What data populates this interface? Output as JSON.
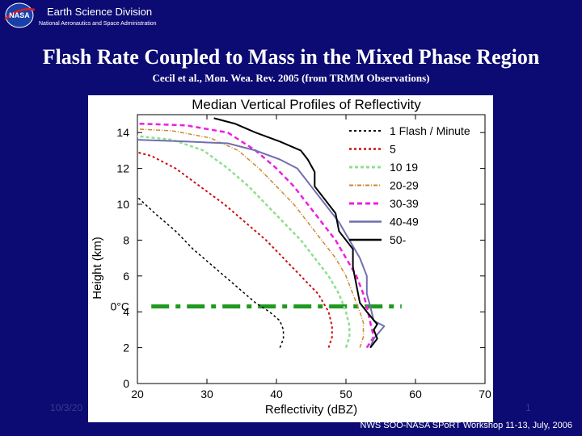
{
  "header": {
    "logo_text": "NASA",
    "division": "Earth Science Division",
    "agency": "National Aeronautics and Space Administration"
  },
  "slide": {
    "title": "Flash Rate Coupled to Mass in the Mixed Phase Region",
    "subtitle": "Cecil et al., Mon. Wea. Rev. 2005 (from TRMM Observations)"
  },
  "footer": {
    "date": "10/3/20",
    "page": "1",
    "workshop": "NWS SOO-NASA SPoRT Workshop 11-13, July, 2006"
  },
  "chart_data": {
    "type": "line",
    "title": "Median Vertical Profiles of Reflectivity",
    "xlabel": "Reflectivity (dBZ)",
    "ylabel": "Height (km)",
    "xlim": [
      20,
      70
    ],
    "ylim": [
      0,
      15
    ],
    "xticks": [
      20,
      30,
      40,
      50,
      60,
      70
    ],
    "yticks": [
      0,
      2,
      4,
      6,
      8,
      10,
      12,
      14
    ],
    "grid": false,
    "legend_position": "top-right",
    "annotation": {
      "text": "0°C",
      "height": 4.3
    },
    "freezing_level": {
      "height": 4.3,
      "x_range": [
        22,
        58
      ],
      "color": "#1f9a1f"
    },
    "series": [
      {
        "name": "1 Flash / Minute",
        "color": "#000000",
        "dash": "3,3",
        "width": 1.5,
        "points": [
          [
            40.5,
            2
          ],
          [
            41,
            2.5
          ],
          [
            41,
            3
          ],
          [
            40.5,
            3.5
          ],
          [
            39,
            4
          ],
          [
            37,
            4.5
          ],
          [
            34,
            5.5
          ],
          [
            31,
            6.5
          ],
          [
            28,
            7.5
          ],
          [
            25.5,
            8.5
          ],
          [
            22.5,
            9.5
          ],
          [
            20,
            10.4
          ]
        ]
      },
      {
        "name": "5",
        "color": "#cc1111",
        "dash": "3,3",
        "width": 2,
        "points": [
          [
            47.5,
            2
          ],
          [
            48,
            2.6
          ],
          [
            48,
            3.2
          ],
          [
            47.5,
            4
          ],
          [
            46,
            5
          ],
          [
            43.5,
            6
          ],
          [
            41,
            7
          ],
          [
            38.5,
            8
          ],
          [
            35.5,
            9
          ],
          [
            32.5,
            10
          ],
          [
            29,
            11
          ],
          [
            25.5,
            12
          ],
          [
            22,
            12.7
          ],
          [
            20,
            12.9
          ]
        ]
      },
      {
        "name": "10 19",
        "color": "#8ee08e",
        "dash": "4,3",
        "width": 2.5,
        "points": [
          [
            50,
            2
          ],
          [
            50.5,
            2.6
          ],
          [
            50.5,
            3.2
          ],
          [
            50,
            4
          ],
          [
            49,
            5
          ],
          [
            47.5,
            6
          ],
          [
            45.5,
            7
          ],
          [
            43.5,
            8
          ],
          [
            41,
            9
          ],
          [
            38.5,
            10
          ],
          [
            36,
            11
          ],
          [
            33,
            12
          ],
          [
            29.5,
            13
          ],
          [
            25,
            13.6
          ],
          [
            20,
            13.8
          ]
        ]
      },
      {
        "name": "20-29",
        "color": "#cc8833",
        "dash": "5,2,1,2",
        "width": 1.5,
        "points": [
          [
            52,
            2
          ],
          [
            52.5,
            2.6
          ],
          [
            52.5,
            3.4
          ],
          [
            52,
            4
          ],
          [
            51,
            5
          ],
          [
            50,
            6
          ],
          [
            48.5,
            7
          ],
          [
            46.5,
            8
          ],
          [
            44.5,
            9
          ],
          [
            42.5,
            10
          ],
          [
            40,
            11
          ],
          [
            37.5,
            12
          ],
          [
            34.5,
            13
          ],
          [
            30.5,
            13.7
          ],
          [
            25,
            14.1
          ],
          [
            20,
            14.2
          ]
        ]
      },
      {
        "name": "30-39",
        "color": "#ee1ee0",
        "dash": "6,4",
        "width": 2.5,
        "points": [
          [
            53,
            2
          ],
          [
            54,
            2.6
          ],
          [
            53.5,
            3.4
          ],
          [
            53,
            4.3
          ],
          [
            52.5,
            5
          ],
          [
            51.5,
            6
          ],
          [
            50,
            7
          ],
          [
            48.5,
            8
          ],
          [
            46.5,
            9
          ],
          [
            44.5,
            10
          ],
          [
            42.5,
            11
          ],
          [
            40,
            12
          ],
          [
            37,
            13
          ],
          [
            33,
            14
          ],
          [
            27,
            14.4
          ],
          [
            20,
            14.5
          ]
        ]
      },
      {
        "name": "40-49",
        "color": "#6f6fb0",
        "dash": "",
        "width": 2,
        "points": [
          [
            53.5,
            2
          ],
          [
            54,
            2.5
          ],
          [
            55.5,
            3.2
          ],
          [
            54,
            3.5
          ],
          [
            53.5,
            4.3
          ],
          [
            53,
            5
          ],
          [
            53,
            6
          ],
          [
            52,
            7
          ],
          [
            50.5,
            8
          ],
          [
            49,
            9
          ],
          [
            47,
            10
          ],
          [
            45,
            11
          ],
          [
            43,
            12
          ],
          [
            40.5,
            12.5
          ],
          [
            37,
            13
          ],
          [
            33,
            13.4
          ],
          [
            27,
            13.5
          ],
          [
            20,
            13.6
          ]
        ]
      },
      {
        "name": "50-",
        "color": "#000000",
        "dash": "",
        "width": 2,
        "points": [
          [
            53.5,
            2
          ],
          [
            54.5,
            2.5
          ],
          [
            54,
            3
          ],
          [
            54.5,
            3.3
          ],
          [
            53,
            4
          ],
          [
            52,
            4.5
          ],
          [
            51.5,
            5.5
          ],
          [
            51,
            6.5
          ],
          [
            51,
            7.5
          ],
          [
            49,
            8.5
          ],
          [
            48.5,
            9.5
          ],
          [
            47.5,
            10
          ],
          [
            46.5,
            10.5
          ],
          [
            45.5,
            11
          ],
          [
            45.5,
            11.8
          ],
          [
            44.5,
            12.5
          ],
          [
            43.5,
            13
          ],
          [
            40.5,
            13.5
          ],
          [
            37,
            14
          ],
          [
            34,
            14.5
          ],
          [
            31,
            14.8
          ]
        ]
      }
    ]
  }
}
